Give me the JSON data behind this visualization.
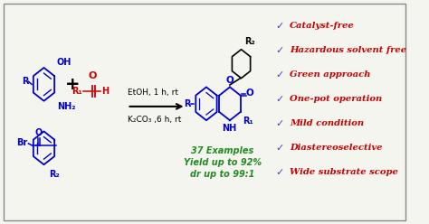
{
  "background_color": "#f5f5f0",
  "border_color": "#888888",
  "title": "",
  "checklist_items": [
    "Catalyst-free",
    "Hazardous solvent free",
    "Green approach",
    "One-pot operation",
    "Mild condition",
    "Diastereoselective",
    "Wide substrate scope"
  ],
  "checklist_color": "#cc0000",
  "checkmark_color": "#4444cc",
  "reaction_conditions_1": "EtOH, 1 h, rt",
  "reaction_conditions_2": "K₂CO₃ ,6 h, rt",
  "examples_text": "37 Examples",
  "yield_text": "Yield up to 92%",
  "dr_text": "dr up to 99:1",
  "green_text_color": "#228B22",
  "blue_color": "#0000cc",
  "red_color": "#cc0000",
  "figsize": [
    4.74,
    2.48
  ],
  "dpi": 100
}
